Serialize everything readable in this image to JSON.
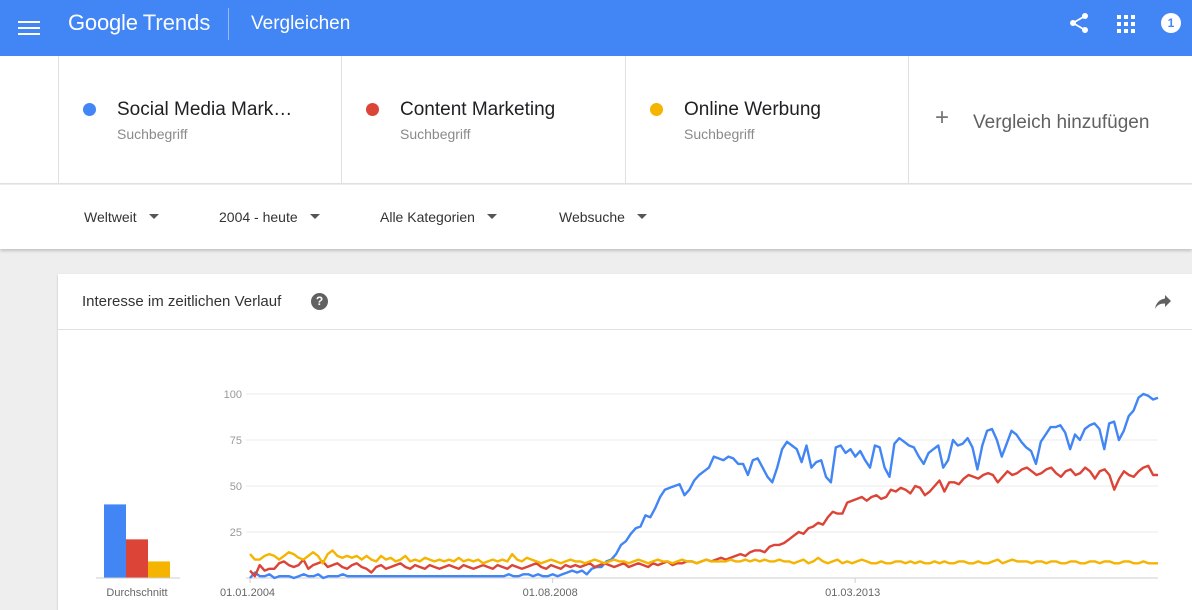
{
  "appbar": {
    "brand_google": "Google",
    "brand_trends": "Trends",
    "title": "Vergleichen",
    "notification_count": "1",
    "icons": [
      "menu-icon",
      "share-icon",
      "apps-icon"
    ],
    "color": "#4285f4"
  },
  "terms": [
    {
      "name": "Social Media Mark…",
      "sub": "Suchbegriff",
      "color": "#4285f4"
    },
    {
      "name": "Content Marketing",
      "sub": "Suchbegriff",
      "color": "#db4437"
    },
    {
      "name": "Online Werbung",
      "sub": "Suchbegriff",
      "color": "#f4b400"
    }
  ],
  "add_compare": {
    "label": "Vergleich hinzufügen"
  },
  "filters": {
    "region": "Weltweit",
    "time": "2004 - heute",
    "category": "Alle Kategorien",
    "search_type": "Websuche"
  },
  "card": {
    "title": "Interesse im zeitlichen Verlauf",
    "help": "?"
  },
  "chart_data": {
    "type": "line",
    "y_ticks": [
      "100",
      "75",
      "50",
      "25"
    ],
    "x_ticks": [
      "01.01.2004",
      "01.08.2008",
      "01.03.2013"
    ],
    "ylim": [
      0,
      100
    ],
    "x_range": [
      "01.01.2004",
      "01.10.2017"
    ],
    "grid": true,
    "series": [
      {
        "name": "Social Media Mark…",
        "color": "#4285f4",
        "values": [
          0,
          3,
          1,
          1,
          2,
          0,
          1,
          1,
          1,
          0,
          1,
          2,
          1,
          1,
          2,
          0,
          1,
          1,
          1,
          2,
          1,
          1,
          1,
          1,
          1,
          1,
          1,
          1,
          1,
          1,
          1,
          1,
          1,
          1,
          1,
          1,
          1,
          1,
          1,
          1,
          1,
          1,
          1,
          1,
          1,
          1,
          1,
          1,
          1,
          1,
          1,
          1,
          1,
          2,
          1,
          1,
          2,
          2,
          1,
          2,
          1,
          1,
          2,
          1,
          2,
          3,
          4,
          3,
          4,
          2,
          5,
          6,
          6,
          9,
          10,
          13,
          18,
          20,
          24,
          27,
          28,
          34,
          33,
          38,
          44,
          48,
          49,
          50,
          51,
          45,
          48,
          53,
          56,
          58,
          60,
          66,
          65,
          64,
          66,
          65,
          62,
          62,
          56,
          64,
          65,
          60,
          55,
          52,
          60,
          70,
          74,
          72,
          70,
          63,
          72,
          60,
          63,
          64,
          55,
          52,
          71,
          72,
          68,
          70,
          66,
          69,
          64,
          60,
          72,
          71,
          60,
          55,
          73,
          76,
          74,
          72,
          71,
          66,
          62,
          68,
          70,
          72,
          60,
          64,
          75,
          72,
          73,
          76,
          71,
          59,
          72,
          80,
          81,
          75,
          66,
          73,
          80,
          78,
          74,
          71,
          69,
          62,
          74,
          78,
          82,
          82,
          83,
          79,
          70,
          78,
          75,
          81,
          83,
          84,
          81,
          70,
          84,
          85,
          75,
          80,
          88,
          91,
          98,
          100,
          99,
          97,
          98
        ]
      },
      {
        "name": "Content Marketing",
        "color": "#db4437",
        "values": [
          4,
          1,
          7,
          4,
          5,
          5,
          8,
          9,
          7,
          6,
          7,
          10,
          5,
          7,
          8,
          9,
          6,
          7,
          8,
          6,
          5,
          7,
          8,
          6,
          5,
          3,
          6,
          7,
          5,
          6,
          7,
          8,
          6,
          5,
          7,
          6,
          5,
          7,
          6,
          5,
          6,
          7,
          6,
          5,
          7,
          6,
          5,
          6,
          7,
          6,
          5,
          7,
          6,
          5,
          7,
          6,
          5,
          6,
          7,
          8,
          6,
          5,
          7,
          6,
          5,
          7,
          6,
          7,
          6,
          7,
          8,
          6,
          7,
          8,
          7,
          6,
          7,
          8,
          6,
          7,
          8,
          7,
          6,
          8,
          7,
          8,
          9,
          7,
          8,
          8,
          9,
          9,
          8,
          9,
          10,
          9,
          10,
          11,
          10,
          11,
          12,
          13,
          12,
          14,
          15,
          15,
          14,
          17,
          18,
          18,
          19,
          21,
          23,
          25,
          24,
          27,
          28,
          30,
          29,
          33,
          36,
          35,
          35,
          41,
          42,
          43,
          44,
          42,
          44,
          45,
          43,
          44,
          48,
          47,
          49,
          48,
          46,
          50,
          49,
          45,
          47,
          50,
          53,
          47,
          52,
          52,
          51,
          54,
          56,
          55,
          54,
          56,
          57,
          56,
          52,
          55,
          58,
          56,
          57,
          59,
          60,
          58,
          56,
          57,
          59,
          60,
          57,
          55,
          58,
          59,
          56,
          57,
          60,
          58,
          54,
          58,
          59,
          56,
          48,
          54,
          58,
          56,
          55,
          58,
          60,
          61,
          56,
          56
        ]
      },
      {
        "name": "Online Werbung",
        "color": "#f4b400",
        "values": [
          13,
          10,
          10,
          12,
          13,
          12,
          10,
          12,
          14,
          13,
          11,
          10,
          12,
          14,
          12,
          8,
          13,
          15,
          12,
          11,
          12,
          11,
          12,
          10,
          12,
          10,
          9,
          12,
          10,
          11,
          9,
          10,
          12,
          9,
          10,
          9,
          11,
          10,
          9,
          10,
          9,
          10,
          9,
          11,
          9,
          10,
          9,
          10,
          8,
          9,
          10,
          9,
          10,
          9,
          13,
          10,
          9,
          11,
          10,
          9,
          8,
          9,
          10,
          9,
          8,
          9,
          10,
          9,
          9,
          8,
          9,
          10,
          9,
          8,
          9,
          10,
          9,
          9,
          8,
          9,
          10,
          9,
          8,
          9,
          10,
          9,
          9,
          8,
          9,
          10,
          9,
          9,
          8,
          9,
          10,
          9,
          9,
          9,
          9,
          10,
          9,
          9,
          10,
          9,
          10,
          9,
          10,
          9,
          9,
          10,
          9,
          9,
          8,
          9,
          10,
          8,
          9,
          11,
          9,
          8,
          9,
          10,
          8,
          9,
          8,
          9,
          10,
          9,
          8,
          8,
          9,
          8,
          8,
          9,
          9,
          8,
          9,
          8,
          9,
          8,
          8,
          9,
          8,
          9,
          8,
          8,
          9,
          9,
          8,
          8,
          9,
          8,
          8,
          9,
          10,
          8,
          9,
          10,
          9,
          9,
          9,
          8,
          9,
          9,
          8,
          9,
          9,
          8,
          8,
          9,
          9,
          8,
          8,
          9,
          9,
          8,
          9,
          9,
          8,
          8,
          9,
          9,
          8,
          8,
          9,
          8,
          8,
          8
        ]
      }
    ]
  },
  "average": {
    "label": "Durchschnitt",
    "values": [
      40,
      21,
      9
    ]
  }
}
